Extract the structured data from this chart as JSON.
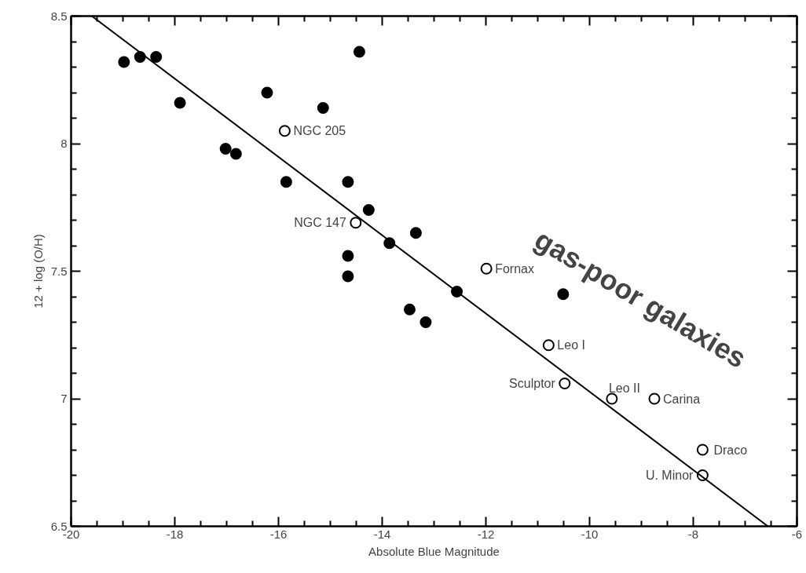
{
  "chart_data": {
    "type": "scatter",
    "xlabel": "Absolute Blue Magnitude",
    "ylabel": "12 + log (O/H)",
    "xlim": [
      -20,
      -6
    ],
    "ylim": [
      6.5,
      8.5
    ],
    "xticks": [
      -20,
      -18,
      -16,
      -14,
      -12,
      -10,
      -8,
      -6
    ],
    "yticks": [
      6.5,
      7,
      7.5,
      8,
      8.5
    ],
    "grid": false,
    "series": [
      {
        "marker": "circle",
        "color": "#000000",
        "x": [
          -18.98,
          -18.67,
          -18.36,
          -17.9,
          -16.22,
          -15.14,
          -14.44,
          -17.02,
          -16.82,
          -15.85,
          -14.66,
          -14.26,
          -13.86,
          -13.35,
          -14.66,
          -14.66,
          -13.47,
          -13.16,
          -12.56,
          -10.51
        ],
        "values": [
          8.32,
          8.34,
          8.34,
          8.16,
          8.2,
          8.14,
          8.36,
          7.98,
          7.96,
          7.85,
          7.85,
          7.74,
          7.61,
          7.65,
          7.56,
          7.48,
          7.35,
          7.3,
          7.42,
          7.41
        ]
      },
      {
        "marker": "circle",
        "color": "#000000",
        "x": [
          -15.88,
          -14.51,
          -11.99,
          -10.79,
          -10.48,
          -9.57,
          -8.75,
          -7.82,
          -7.82
        ],
        "values": [
          8.05,
          7.69,
          7.51,
          7.21,
          7.06,
          7.0,
          7.0,
          6.8,
          6.7
        ]
      },
      {
        "type": "line",
        "color": "#000000",
        "line_style": "solid",
        "x": [
          -19.6,
          -6.56
        ],
        "values": [
          8.5,
          6.5
        ]
      }
    ],
    "annotations": [
      {
        "text": "NGC 205",
        "x": -15.88,
        "y": 8.05
      },
      {
        "text": "NGC 147",
        "x": -14.51,
        "y": 7.69
      },
      {
        "text": "Fornax",
        "x": -11.99,
        "y": 7.51
      },
      {
        "text": "Leo I",
        "x": -10.79,
        "y": 7.21
      },
      {
        "text": "Sculptor",
        "x": -10.48,
        "y": 7.06
      },
      {
        "text": "Leo II",
        "x": -9.57,
        "y": 7.0
      },
      {
        "text": "Carina",
        "x": -8.75,
        "y": 7.0
      },
      {
        "text": "Draco",
        "x": -7.82,
        "y": 6.8
      },
      {
        "text": "U. Minor",
        "x": -7.82,
        "y": 6.7
      },
      "gas-poor galaxies"
    ]
  }
}
